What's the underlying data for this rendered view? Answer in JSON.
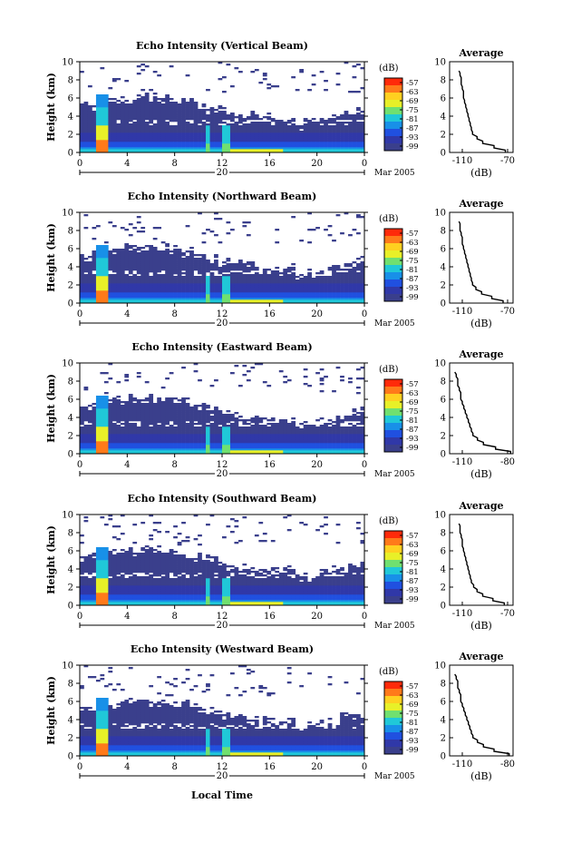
{
  "xlabel": "Local Time",
  "date_label": "Mar 2005",
  "colorbar": {
    "unit_label": "(dB)",
    "ticks": [
      "-57",
      "-63",
      "-69",
      "-75",
      "-81",
      "-87",
      "-93",
      "-99"
    ],
    "colors": [
      "#ff2a0a",
      "#ff7a1a",
      "#ffd020",
      "#e8f028",
      "#70e070",
      "#20c8d8",
      "#1890e8",
      "#2050e0",
      "#3038a8",
      "#3a3f8c"
    ]
  },
  "x_ticks": [
    "0",
    "4",
    "8",
    "12",
    "16",
    "20",
    "0"
  ],
  "day_label": "20",
  "y_ticks": [
    "0",
    "2",
    "4",
    "6",
    "8",
    "10"
  ],
  "ylabel": "Height (km)",
  "profile": {
    "title": "Average",
    "xlabel": "(dB)",
    "y_ticks": [
      "0",
      "2",
      "4",
      "6",
      "8",
      "10"
    ]
  },
  "chart_data": [
    {
      "type": "heatmap",
      "title": "Echo Intensity (Vertical Beam)",
      "xlabel": "",
      "ylabel": "Height (km)",
      "xlim": [
        0,
        24
      ],
      "ylim": [
        0,
        10
      ],
      "zlim": [
        -99,
        -57
      ],
      "profile": {
        "type": "line",
        "title": "Average",
        "xlabel": "(dB)",
        "x_ticks": [
          "-110",
          "-70"
        ],
        "height_km": [
          0.0,
          0.5,
          1.0,
          1.5,
          2.0,
          2.5,
          3.0,
          3.5,
          4.0,
          4.5,
          5.0,
          5.5,
          6.0,
          6.5,
          7.0,
          7.5,
          8.0,
          8.5,
          9.0
        ],
        "db": [
          -72,
          -82,
          -92,
          -97,
          -101,
          -102,
          -103,
          -104,
          -105,
          -106,
          -107,
          -108,
          -109,
          -109,
          -110,
          -111,
          -111,
          -112,
          -113
        ]
      }
    },
    {
      "type": "heatmap",
      "title": "Echo Intensity (Northward Beam)",
      "xlabel": "",
      "ylabel": "Height (km)",
      "xlim": [
        0,
        24
      ],
      "ylim": [
        0,
        10
      ],
      "zlim": [
        -99,
        -57
      ],
      "profile": {
        "type": "line",
        "title": "Average",
        "xlabel": "(dB)",
        "x_ticks": [
          "-110",
          "-70"
        ],
        "height_km": [
          0.0,
          0.5,
          1.0,
          1.5,
          2.0,
          2.5,
          3.0,
          3.5,
          4.0,
          4.5,
          5.0,
          5.5,
          6.0,
          6.5,
          7.0,
          7.5,
          8.0,
          8.5,
          9.0
        ],
        "db": [
          -74,
          -84,
          -93,
          -98,
          -101,
          -102,
          -103,
          -104,
          -105,
          -106,
          -107,
          -108,
          -109,
          -110,
          -110,
          -111,
          -112,
          -112,
          -113
        ]
      }
    },
    {
      "type": "heatmap",
      "title": "Echo Intensity (Eastward Beam)",
      "xlabel": "",
      "ylabel": "Height (km)",
      "xlim": [
        0,
        24
      ],
      "ylim": [
        0,
        10
      ],
      "zlim": [
        -99,
        -57
      ],
      "profile": {
        "type": "line",
        "title": "Average",
        "xlabel": "(dB)",
        "x_ticks": [
          "-110",
          "-80"
        ],
        "height_km": [
          0.0,
          0.5,
          1.0,
          1.5,
          2.0,
          2.5,
          3.0,
          3.5,
          4.0,
          4.5,
          5.0,
          5.5,
          6.0,
          6.5,
          7.0,
          7.5,
          8.0,
          8.5,
          9.0
        ],
        "db": [
          -78,
          -88,
          -96,
          -100,
          -103,
          -104,
          -105,
          -106,
          -107,
          -108,
          -109,
          -110,
          -111,
          -111,
          -112,
          -113,
          -113,
          -114,
          -115
        ]
      }
    },
    {
      "type": "heatmap",
      "title": "Echo Intensity (Southward Beam)",
      "xlabel": "",
      "ylabel": "Height (km)",
      "xlim": [
        0,
        24
      ],
      "ylim": [
        0,
        10
      ],
      "zlim": [
        -99,
        -57
      ],
      "profile": {
        "type": "line",
        "title": "Average",
        "xlabel": "(dB)",
        "x_ticks": [
          "-110",
          "-70"
        ],
        "height_km": [
          0.0,
          0.5,
          1.0,
          1.5,
          2.0,
          2.5,
          3.0,
          3.5,
          4.0,
          4.5,
          5.0,
          5.5,
          6.0,
          6.5,
          7.0,
          7.5,
          8.0,
          8.5,
          9.0
        ],
        "db": [
          -73,
          -83,
          -92,
          -97,
          -100,
          -102,
          -103,
          -104,
          -105,
          -106,
          -107,
          -108,
          -109,
          -110,
          -110,
          -111,
          -112,
          -112,
          -113
        ]
      }
    },
    {
      "type": "heatmap",
      "title": "Echo Intensity (Westward Beam)",
      "xlabel": "Local Time",
      "ylabel": "Height (km)",
      "xlim": [
        0,
        24
      ],
      "ylim": [
        0,
        10
      ],
      "zlim": [
        -99,
        -57
      ],
      "profile": {
        "type": "line",
        "title": "Average",
        "xlabel": "(dB)",
        "x_ticks": [
          "-110",
          "-80"
        ],
        "height_km": [
          0.0,
          0.5,
          1.0,
          1.5,
          2.0,
          2.5,
          3.0,
          3.5,
          4.0,
          4.5,
          5.0,
          5.5,
          6.0,
          6.5,
          7.0,
          7.5,
          8.0,
          8.5,
          9.0
        ],
        "db": [
          -79,
          -89,
          -96,
          -100,
          -103,
          -104,
          -105,
          -106,
          -107,
          -108,
          -109,
          -110,
          -111,
          -111,
          -112,
          -113,
          -113,
          -114,
          -115
        ]
      }
    }
  ]
}
